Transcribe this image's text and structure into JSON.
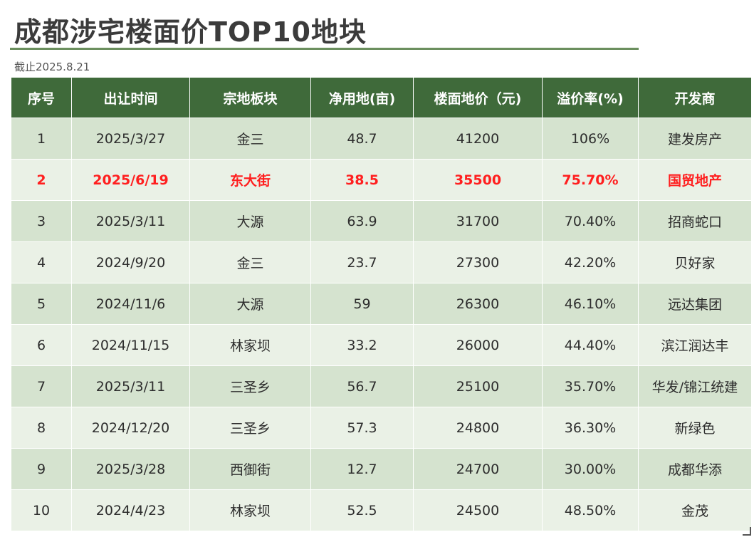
{
  "title": "成都涉宅楼面价TOP10地块",
  "subtitle": "截止2025.8.21",
  "accent_color": "#3f6a3a",
  "highlight_color": "#ff1f1f",
  "table": {
    "headers": [
      "序号",
      "出让时间",
      "宗地板块",
      "净用地(亩)",
      "楼面地价（元)",
      "溢价率(%)",
      "开发商"
    ],
    "highlight_row_index": 1,
    "rows": [
      [
        "1",
        "2025/3/27",
        "金三",
        "48.7",
        "41200",
        "106%",
        "建发房产"
      ],
      [
        "2",
        "2025/6/19",
        "东大街",
        "38.5",
        "35500",
        "75.70%",
        "国贸地产"
      ],
      [
        "3",
        "2025/3/11",
        "大源",
        "63.9",
        "31700",
        "70.40%",
        "招商蛇口"
      ],
      [
        "4",
        "2024/9/20",
        "金三",
        "23.7",
        "27300",
        "42.20%",
        "贝好家"
      ],
      [
        "5",
        "2024/11/6",
        "大源",
        "59",
        "26300",
        "46.10%",
        "远达集团"
      ],
      [
        "6",
        "2024/11/15",
        "林家坝",
        "33.2",
        "26000",
        "44.40%",
        "滨江润达丰"
      ],
      [
        "7",
        "2025/3/11",
        "三圣乡",
        "56.7",
        "25100",
        "35.70%",
        "华发/锦江统建"
      ],
      [
        "8",
        "2024/12/20",
        "三圣乡",
        "57.3",
        "24800",
        "36.30%",
        "新绿色"
      ],
      [
        "9",
        "2025/3/28",
        "西御街",
        "12.7",
        "24700",
        "30.00%",
        "成都华添"
      ],
      [
        "10",
        "2024/4/23",
        "林家坝",
        "52.5",
        "24500",
        "48.50%",
        "金茂"
      ]
    ]
  }
}
